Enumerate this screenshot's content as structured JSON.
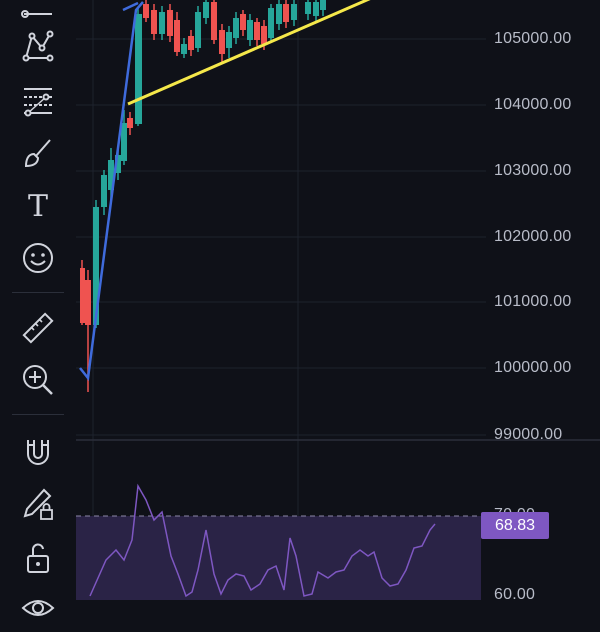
{
  "toolbar": {
    "tools": [
      {
        "name": "line-tool-icon"
      },
      {
        "name": "pattern-tool-icon"
      },
      {
        "name": "fib-tool-icon"
      },
      {
        "name": "brush-tool-icon"
      },
      {
        "name": "text-tool-icon",
        "label": "T"
      },
      {
        "name": "emoji-tool-icon"
      },
      {
        "name": "ruler-tool-icon"
      },
      {
        "name": "zoom-in-icon"
      },
      {
        "name": "magnet-icon"
      },
      {
        "name": "lock-drawing-icon"
      },
      {
        "name": "unlock-icon"
      },
      {
        "name": "eye-icon"
      }
    ]
  },
  "price_axis": {
    "labels": [
      "105000.00",
      "104000.00",
      "103000.00",
      "102000.00",
      "101000.00",
      "100000.00",
      "99000.00"
    ]
  },
  "rsi": {
    "current_value": "68.83",
    "level_upper": "70.00",
    "level_lower": "60.00",
    "line_color": "#7e57c2"
  },
  "colors": {
    "up": "#26a69a",
    "down": "#ef5350",
    "trend_blue": "#3f6bdc",
    "trend_yellow": "#f5e84a"
  }
}
